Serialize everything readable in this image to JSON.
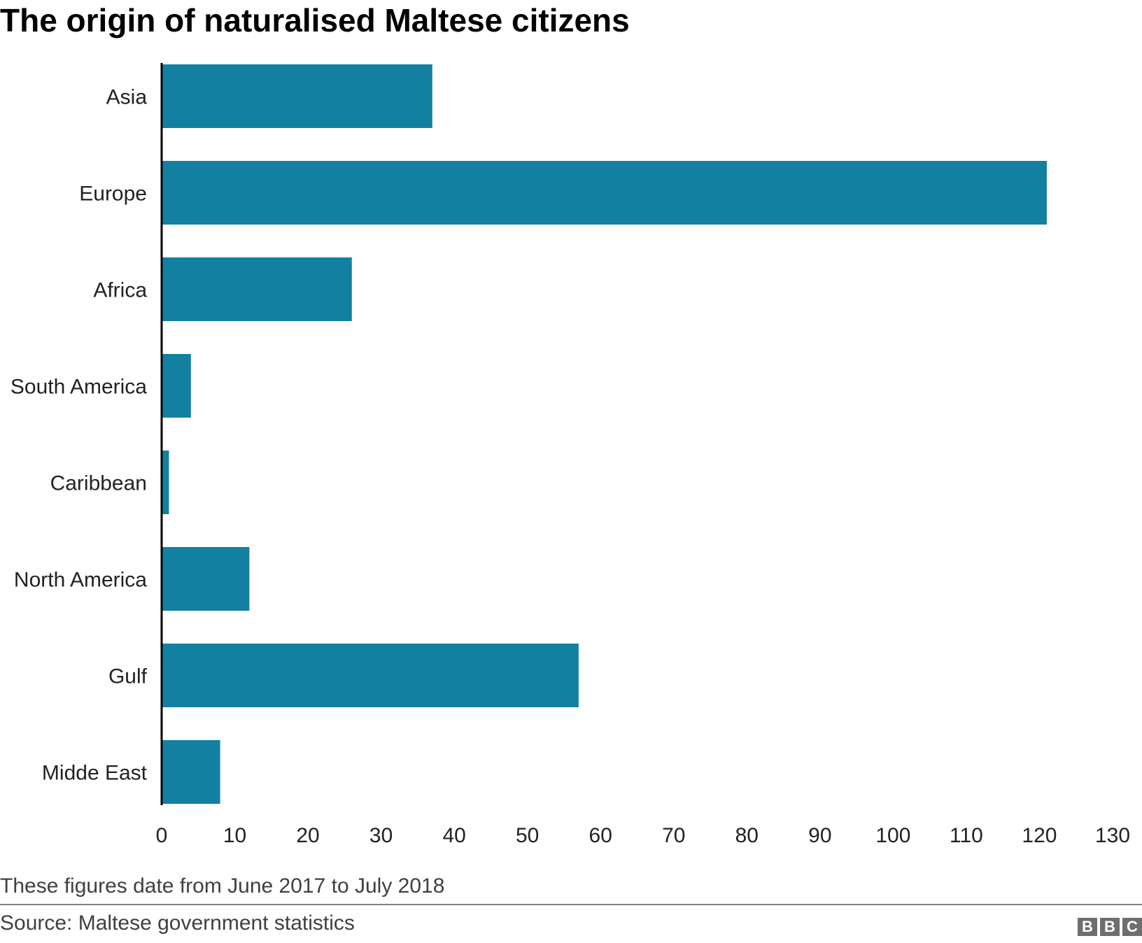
{
  "chart_data": {
    "type": "bar",
    "orientation": "horizontal",
    "title": "The origin of naturalised Maltese citizens",
    "categories": [
      "Asia",
      "Europe",
      "Africa",
      "South America",
      "Caribbean",
      "North America",
      "Gulf",
      "Midde East"
    ],
    "values": [
      37,
      121,
      26,
      4,
      1,
      12,
      57,
      8
    ],
    "xlim": [
      0,
      130
    ],
    "xticks": [
      "0",
      "10",
      "20",
      "30",
      "40",
      "50",
      "60",
      "70",
      "80",
      "90",
      "100",
      "110",
      "120",
      "130"
    ],
    "xlabel": "",
    "ylabel": "",
    "grid": false,
    "bar_color": "#1380A1"
  },
  "note": "These figures date from June 2017 to July 2018",
  "source": "Source: Maltese government statistics",
  "logo": [
    "B",
    "B",
    "C"
  ]
}
